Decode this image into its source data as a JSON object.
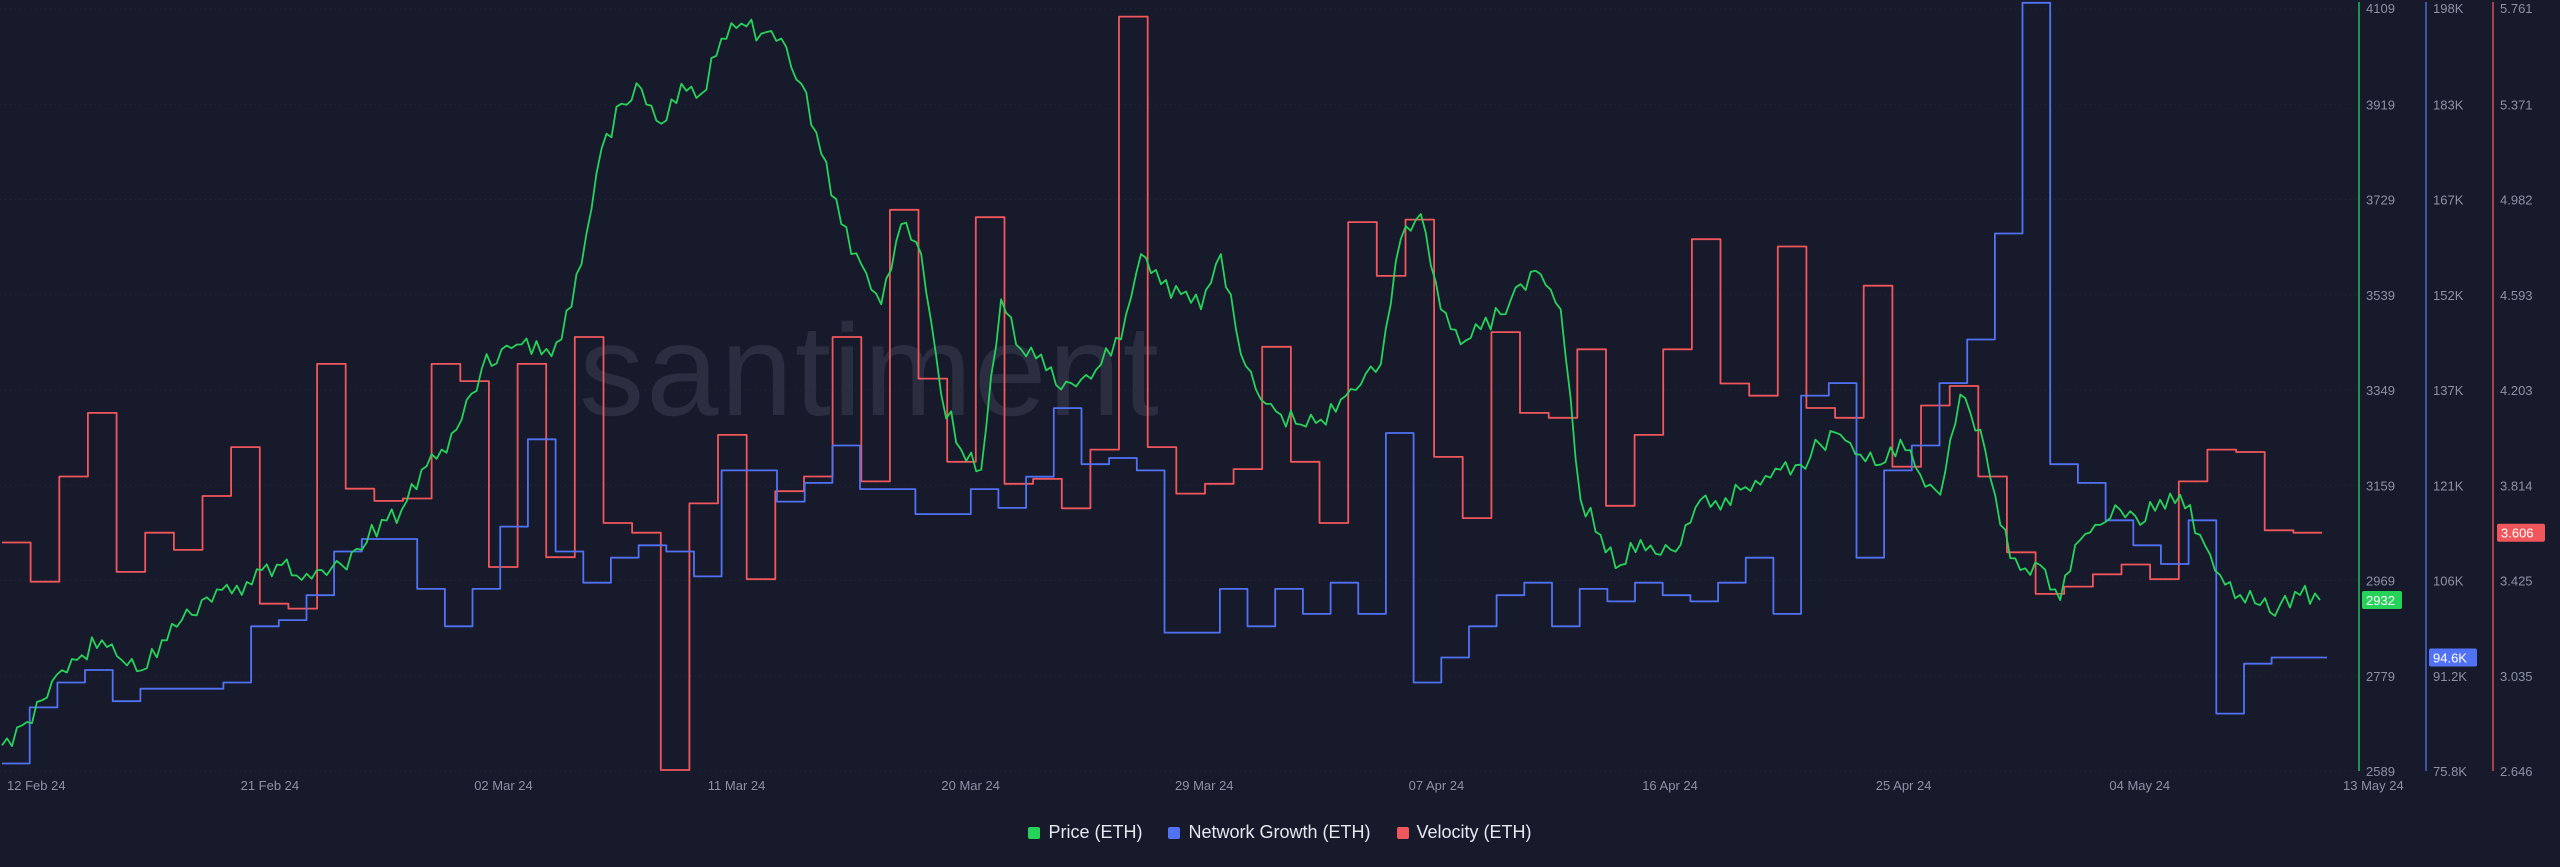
{
  "colors": {
    "background": "#171a2b",
    "grid": "#23273a",
    "price": "#26d35a",
    "network_growth": "#5272f5",
    "velocity": "#f0575c"
  },
  "watermark": "santiment",
  "chart_data": {
    "type": "line",
    "title": "",
    "x_range": [
      "12 Feb 24",
      "13 May 24"
    ],
    "x_tick_labels": [
      "12 Feb 24",
      "21 Feb 24",
      "02 Mar 24",
      "11 Mar 24",
      "20 Mar 24",
      "29 Mar 24",
      "07 Apr 24",
      "16 Apr 24",
      "25 Apr 24",
      "04 May 24",
      "13 May 24"
    ],
    "series": [
      {
        "key": "price",
        "name": "Price (ETH)",
        "color": "#26d35a",
        "axis_min": 2589,
        "axis_max": 4109,
        "axis_tick_labels": [
          "4109",
          "3919",
          "3729",
          "3539",
          "3349",
          "3159",
          "2969",
          "2779",
          "2589"
        ],
        "last_value_label": "2932",
        "values": [
          2640,
          2680,
          2730,
          2790,
          2820,
          2850,
          2810,
          2790,
          2850,
          2890,
          2930,
          2950,
          2940,
          2990,
          3000,
          2970,
          2990,
          3000,
          3030,
          3090,
          3110,
          3190,
          3230,
          3290,
          3390,
          3430,
          3440,
          3420,
          3450,
          3600,
          3830,
          3920,
          3950,
          3880,
          3960,
          3940,
          4050,
          4080,
          4060,
          4050,
          3960,
          3820,
          3680,
          3600,
          3520,
          3680,
          3620,
          3340,
          3230,
          3190,
          3530,
          3430,
          3420,
          3350,
          3370,
          3400,
          3450,
          3620,
          3560,
          3540,
          3510,
          3620,
          3420,
          3330,
          3300,
          3280,
          3290,
          3330,
          3360,
          3400,
          3650,
          3700,
          3510,
          3440,
          3470,
          3500,
          3560,
          3580,
          3510,
          3130,
          3060,
          3000,
          3050,
          3020,
          3040,
          3130,
          3110,
          3150,
          3160,
          3190,
          3200,
          3240,
          3260,
          3220,
          3200,
          3250,
          3180,
          3140,
          3340,
          3270,
          3080,
          2990,
          3000,
          2930,
          3050,
          3080,
          3110,
          3080,
          3130,
          3140,
          3060,
          2980,
          2940,
          2920,
          2920,
          2940,
          2930
        ]
      },
      {
        "key": "network_growth",
        "name": "Network Growth (ETH)",
        "color": "#5272f5",
        "axis_min": 75.8,
        "axis_max": 198,
        "unit": "K",
        "axis_tick_labels": [
          "198K",
          "183K",
          "167K",
          "152K",
          "137K",
          "121K",
          "106K",
          "91.2K",
          "75.8K"
        ],
        "last_value_label": "94.6K",
        "values": [
          77,
          86,
          90,
          92,
          87,
          89,
          89,
          89,
          90,
          99,
          100,
          104,
          111,
          113,
          113,
          105,
          99,
          105,
          115,
          129,
          111,
          106,
          110,
          112,
          111,
          107,
          124,
          124,
          119,
          122,
          128,
          121,
          121,
          117,
          117,
          121,
          118,
          123,
          134,
          125,
          126,
          124,
          98,
          98,
          105,
          99,
          105,
          101,
          106,
          101,
          130,
          90,
          94,
          99,
          104,
          106,
          99,
          105,
          103,
          106,
          104,
          103,
          106,
          110,
          101,
          136,
          138,
          110,
          124,
          128,
          138,
          145,
          162,
          199,
          125,
          122,
          116,
          112,
          109,
          116,
          85,
          93,
          94,
          94
        ]
      },
      {
        "key": "velocity",
        "name": "Velocity (ETH)",
        "color": "#f0575c",
        "axis_min": 2.646,
        "axis_max": 5.761,
        "axis_tick_labels": [
          "5.761",
          "5.371",
          "4.982",
          "4.593",
          "4.203",
          "3.814",
          "3.425",
          "3.035",
          "2.646"
        ],
        "last_value_label": "3.606",
        "values": [
          3.58,
          3.42,
          3.85,
          4.11,
          3.46,
          3.62,
          3.55,
          3.77,
          3.97,
          3.33,
          3.31,
          4.31,
          3.8,
          3.75,
          3.76,
          4.31,
          4.24,
          3.48,
          4.31,
          3.52,
          4.42,
          3.66,
          3.62,
          2.65,
          3.74,
          4.02,
          3.43,
          3.79,
          3.85,
          4.42,
          3.83,
          4.94,
          4.25,
          3.91,
          4.91,
          3.82,
          3.84,
          3.72,
          3.96,
          5.73,
          3.97,
          3.78,
          3.82,
          3.88,
          4.38,
          3.91,
          3.66,
          4.89,
          4.67,
          4.9,
          3.93,
          3.68,
          4.44,
          4.11,
          4.09,
          4.37,
          3.73,
          4.02,
          4.37,
          4.82,
          4.23,
          4.18,
          4.79,
          4.13,
          4.09,
          4.63,
          3.89,
          4.14,
          4.22,
          3.85,
          3.54,
          3.37,
          3.4,
          3.45,
          3.49,
          3.43,
          3.83,
          3.96,
          3.95,
          3.63,
          3.62
        ]
      }
    ],
    "legend_position": "bottom-center",
    "grid": true
  }
}
